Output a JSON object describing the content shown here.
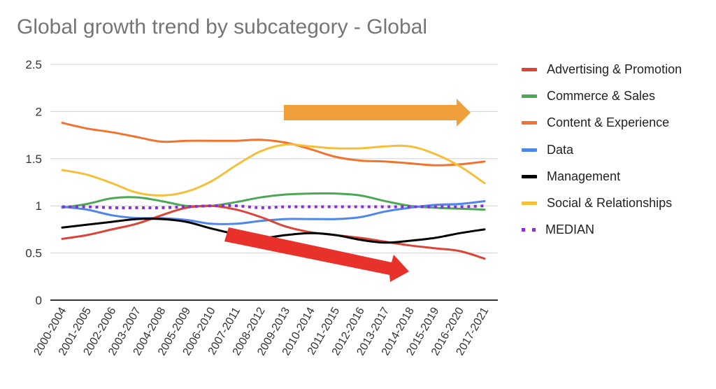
{
  "chart_data": {
    "type": "line",
    "title": "Global growth trend by subcategory - Global",
    "xlabel": "",
    "ylabel": "",
    "ylim": [
      0,
      2.5
    ],
    "yticks": [
      "0",
      "0.5",
      "1",
      "1.5",
      "2",
      "2.5"
    ],
    "ytick_values": [
      0,
      0.5,
      1,
      1.5,
      2,
      2.5
    ],
    "grid": true,
    "legend_position": "right",
    "categories": [
      "2000-2004",
      "2001-2005",
      "2002-2006",
      "2003-2007",
      "2004-2008",
      "2005-2009",
      "2006-2010",
      "2007-2011",
      "2008-2012",
      "2009-2013",
      "2010-2014",
      "2011-2015",
      "2012-2016",
      "2013-2017",
      "2014-2018",
      "2015-2019",
      "2016-2020",
      "2017-2021"
    ],
    "series": [
      {
        "name": "Advertising & Promotion",
        "color": "#db4437",
        "style": "solid",
        "values": [
          0.65,
          0.69,
          0.75,
          0.81,
          0.9,
          0.98,
          1.0,
          0.96,
          0.88,
          0.78,
          0.72,
          0.69,
          0.66,
          0.62,
          0.58,
          0.55,
          0.52,
          0.44
        ]
      },
      {
        "name": "Commerce & Sales",
        "color": "#4ca855",
        "style": "solid",
        "values": [
          0.98,
          1.02,
          1.08,
          1.09,
          1.05,
          1.0,
          1.0,
          1.04,
          1.09,
          1.12,
          1.13,
          1.13,
          1.11,
          1.05,
          1.0,
          0.98,
          0.97,
          0.96
        ]
      },
      {
        "name": "Content & Experience",
        "color": "#f07430",
        "style": "solid",
        "values": [
          1.88,
          1.82,
          1.78,
          1.73,
          1.68,
          1.69,
          1.69,
          1.69,
          1.7,
          1.67,
          1.6,
          1.52,
          1.48,
          1.47,
          1.45,
          1.43,
          1.44,
          1.47
        ]
      },
      {
        "name": "Data",
        "color": "#4f86ec",
        "style": "solid",
        "values": [
          0.99,
          0.96,
          0.9,
          0.87,
          0.87,
          0.85,
          0.81,
          0.81,
          0.84,
          0.86,
          0.86,
          0.86,
          0.88,
          0.94,
          0.98,
          1.01,
          1.02,
          1.05
        ]
      },
      {
        "name": "Management",
        "color": "#000000",
        "style": "solid",
        "values": [
          0.77,
          0.8,
          0.83,
          0.86,
          0.86,
          0.83,
          0.76,
          0.7,
          0.66,
          0.69,
          0.71,
          0.69,
          0.64,
          0.61,
          0.63,
          0.66,
          0.71,
          0.75
        ]
      },
      {
        "name": "Social & Relationships",
        "color": "#f6bf3a",
        "style": "solid",
        "values": [
          1.38,
          1.33,
          1.24,
          1.14,
          1.11,
          1.15,
          1.26,
          1.43,
          1.58,
          1.65,
          1.63,
          1.61,
          1.61,
          1.63,
          1.63,
          1.55,
          1.42,
          1.24
        ]
      },
      {
        "name": "MEDIAN",
        "color": "#8a2be2",
        "style": "dotted",
        "values": [
          0.99,
          0.99,
          0.98,
          0.98,
          0.98,
          0.99,
          1.0,
          1.0,
          0.98,
          0.99,
          0.99,
          0.99,
          0.99,
          0.99,
          0.99,
          0.99,
          0.99,
          1.0
        ]
      }
    ],
    "annotations": [
      {
        "type": "arrow",
        "name": "upward-flat-trend-arrow",
        "color": "#f0a03a",
        "direction": "right"
      },
      {
        "type": "arrow",
        "name": "downward-trend-arrow",
        "color": "#e8312a",
        "direction": "down-right"
      }
    ]
  }
}
